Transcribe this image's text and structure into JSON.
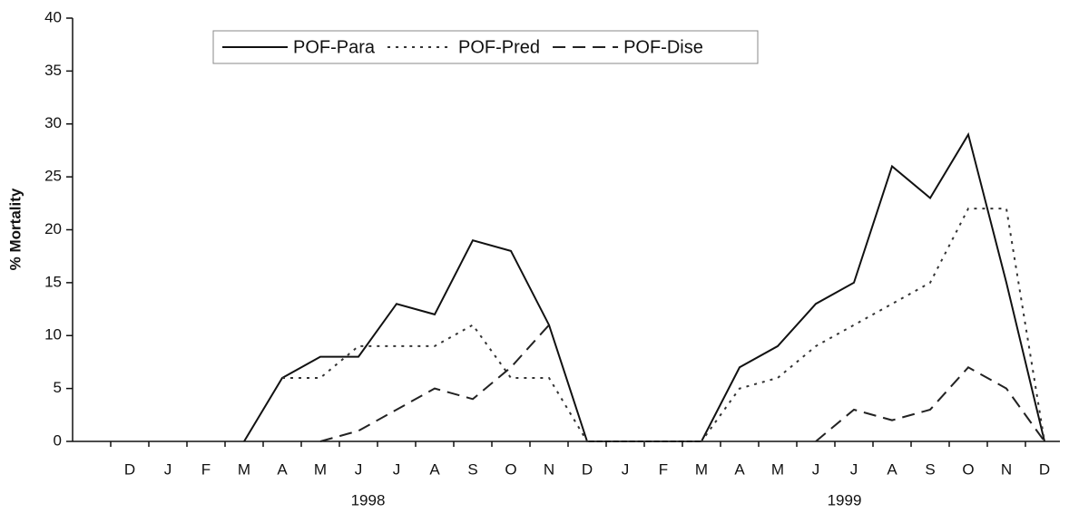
{
  "chart_data": {
    "type": "line",
    "y_label": "% Mortality",
    "categories": [
      "D",
      "J",
      "F",
      "M",
      "A",
      "M",
      "J",
      "J",
      "A",
      "S",
      "O",
      "N",
      "D",
      "J",
      "F",
      "M",
      "A",
      "M",
      "J",
      "J",
      "A",
      "S",
      "O",
      "N",
      "D"
    ],
    "x_groups": [
      "1998",
      "1999"
    ],
    "ylim": [
      0,
      40
    ],
    "yticks": [
      0,
      5,
      10,
      15,
      20,
      25,
      30,
      35,
      40
    ],
    "legend": "top-left",
    "series": [
      {
        "name": "POF-Para",
        "color": "#111111",
        "style": "solid",
        "values": [
          null,
          null,
          null,
          0,
          6,
          8,
          8,
          13,
          12,
          19,
          18,
          11,
          0,
          0,
          0,
          0,
          7,
          9,
          13,
          15,
          26,
          23,
          29,
          15,
          0
        ]
      },
      {
        "name": "POF-Pred",
        "color": "#333333",
        "style": "dotted",
        "values": [
          null,
          null,
          null,
          null,
          6,
          6,
          9,
          9,
          9,
          11,
          6,
          6,
          0,
          0,
          0,
          0,
          5,
          6,
          9,
          11,
          13,
          15,
          22,
          22,
          0
        ]
      },
      {
        "name": "POF-Dise",
        "color": "#222222",
        "style": "dashed",
        "values": [
          null,
          null,
          null,
          null,
          null,
          0,
          1,
          3,
          5,
          4,
          7,
          11,
          null,
          null,
          null,
          null,
          null,
          null,
          0,
          3,
          2,
          3,
          7,
          5,
          0
        ]
      }
    ]
  }
}
